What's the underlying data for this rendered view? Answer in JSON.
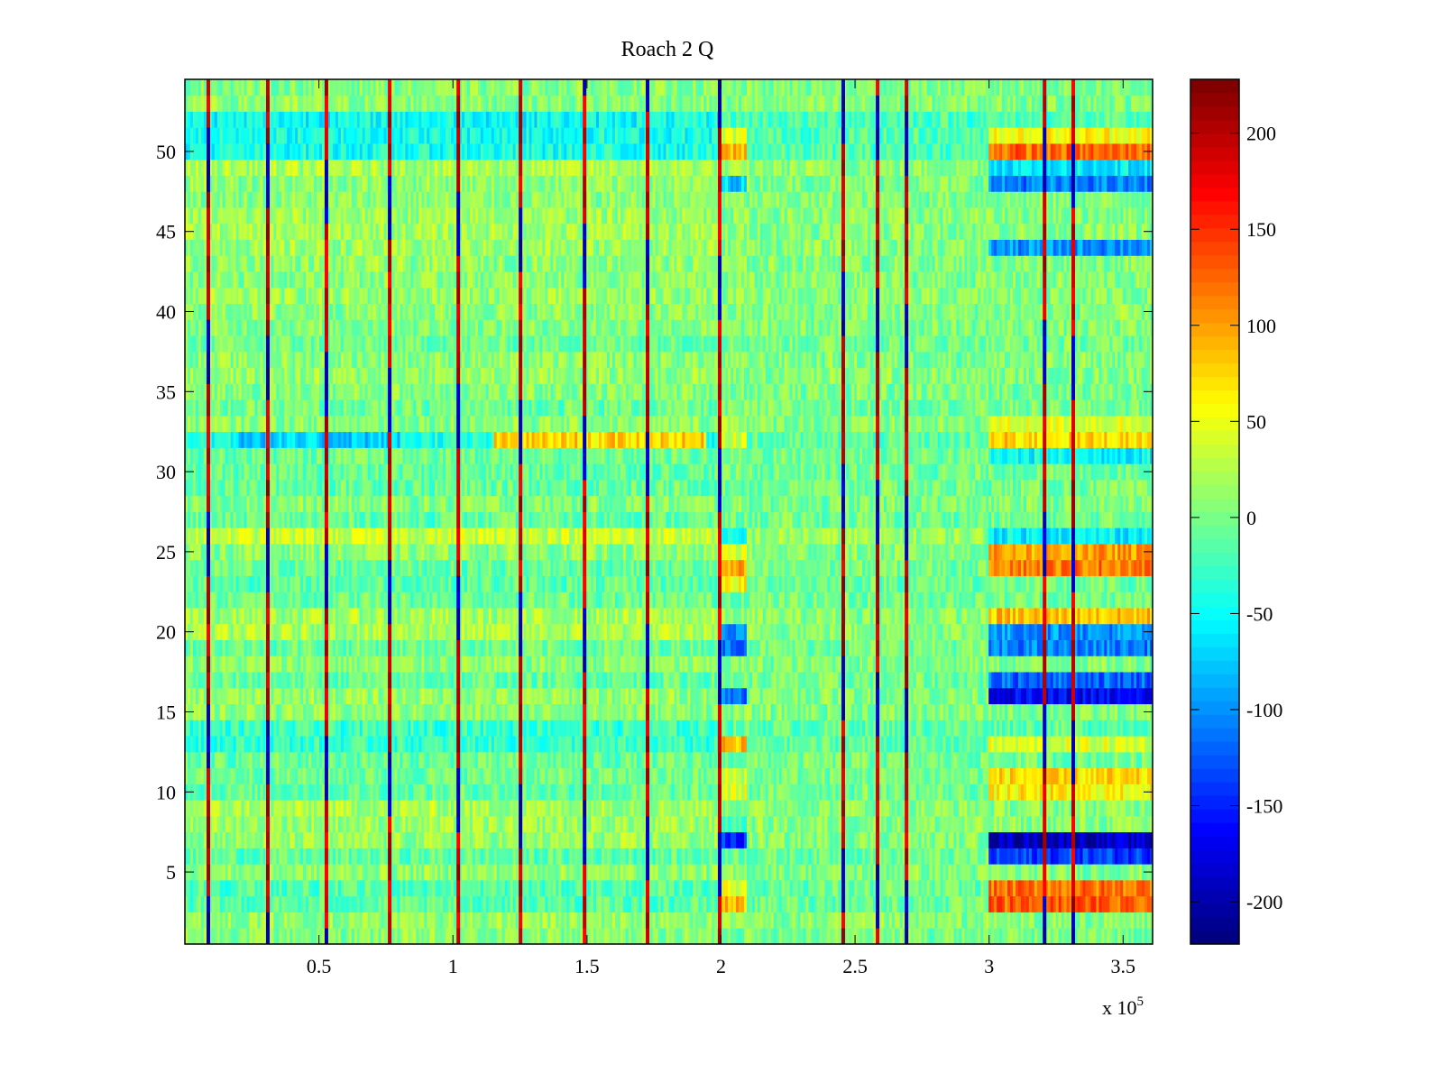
{
  "chart_data": {
    "type": "heatmap",
    "title": "Roach 2 Q",
    "xlabel": "",
    "ylabel": "",
    "x_exponent_label": "x 10",
    "x_exponent_power": "5",
    "xlim": [
      0,
      361000
    ],
    "ylim": [
      0.5,
      54.5
    ],
    "n_rows": 54,
    "n_cols": 360,
    "xticks": [
      50000,
      100000,
      150000,
      200000,
      250000,
      300000,
      350000
    ],
    "xtick_labels": [
      "0.5",
      "1",
      "1.5",
      "2",
      "2.5",
      "3",
      "3.5"
    ],
    "yticks": [
      5,
      10,
      15,
      20,
      25,
      30,
      35,
      40,
      45,
      50
    ],
    "ytick_labels": [
      "5",
      "10",
      "15",
      "20",
      "25",
      "30",
      "35",
      "40",
      "45",
      "50"
    ],
    "colormap": "jet",
    "clim": [
      -222,
      228
    ],
    "colorbar_ticks": [
      -200,
      -150,
      -100,
      -50,
      0,
      50,
      100,
      150,
      200
    ],
    "colorbar_tick_labels": [
      "-200",
      "-150",
      "-100",
      "-50",
      "0",
      "50",
      "100",
      "150",
      "200"
    ],
    "colorbar_location": "right",
    "grid": false,
    "stripe_x": [
      8750,
      30950,
      52800,
      76400,
      102000,
      125200,
      149100,
      172600,
      199500,
      245600,
      258400,
      269200,
      320700,
      331400
    ],
    "row_baseline_early": [
      5,
      12,
      -15,
      -18,
      10,
      -12,
      12,
      15,
      20,
      -10,
      -5,
      -8,
      -30,
      -28,
      8,
      12,
      -10,
      8,
      -5,
      22,
      18,
      -5,
      -12,
      -8,
      8,
      35,
      -10,
      5,
      -8,
      -10,
      -5,
      -40,
      8,
      -5,
      5,
      12,
      8,
      -5,
      5,
      8,
      12,
      8,
      10,
      15,
      18,
      15,
      8,
      10,
      22,
      -45,
      -45,
      -48,
      8,
      5
    ],
    "segments": [
      {
        "x_from": 200000,
        "x_to": 210000,
        "row_values": {
          "3": 90,
          "4": 45,
          "7": -150,
          "8": -20,
          "10": 40,
          "11": 35,
          "13": 85,
          "16": -110,
          "19": -110,
          "20": -110,
          "23": 55,
          "24": 90,
          "25": 45,
          "26": -60,
          "32": 45,
          "33": 30,
          "48": -70,
          "50": 90,
          "51": 40
        }
      },
      {
        "x_from": 300000,
        "x_to": 361000,
        "row_values": {
          "3": 130,
          "4": 120,
          "6": -140,
          "7": -195,
          "10": 60,
          "11": 70,
          "13": 40,
          "16": -170,
          "17": -120,
          "19": -110,
          "20": -100,
          "21": 85,
          "24": 120,
          "25": 100,
          "26": -55,
          "31": -50,
          "32": 75,
          "33": 45,
          "44": -100,
          "48": -110,
          "49": -60,
          "50": 125,
          "51": 60
        }
      }
    ]
  }
}
